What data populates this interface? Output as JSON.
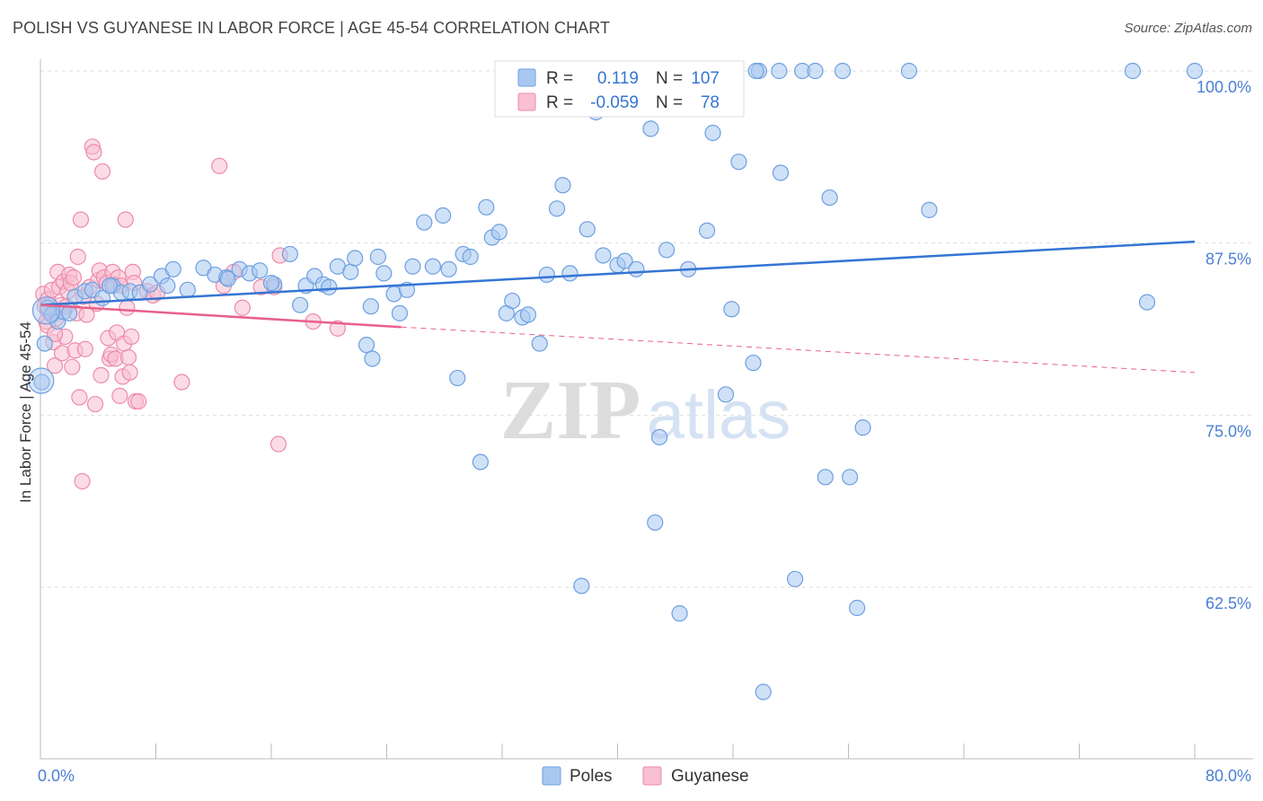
{
  "chart_data": {
    "type": "scatter",
    "title": "POLISH VS GUYANESE IN LABOR FORCE | AGE 45-54 CORRELATION CHART",
    "source": "Source: ZipAtlas.com",
    "ylabel": "In Labor Force | Age 45-54",
    "xlabel": "",
    "xlim": [
      0,
      80
    ],
    "ylim": [
      50,
      101
    ],
    "x_tick_labels": [
      "0.0%",
      "80.0%"
    ],
    "y_ticks": [
      62.5,
      75.0,
      87.5,
      100.0
    ],
    "y_tick_labels": [
      "62.5%",
      "75.0%",
      "87.5%",
      "100.0%"
    ],
    "grid": true,
    "watermark": {
      "zip": "ZIP",
      "atlas": "atlas"
    },
    "stats": {
      "r_label": "R =",
      "n_label": "N =",
      "series": [
        {
          "name": "Poles",
          "r": "0.119",
          "n": "107"
        },
        {
          "name": "Guyanese",
          "r": "-0.059",
          "n": "78"
        }
      ]
    },
    "legend_position": "top-center",
    "series": [
      {
        "name": "Poles",
        "color": "#6d9fe0",
        "fill": "#a8c8f0",
        "trend": {
          "x": [
            0,
            80
          ],
          "y": [
            83.0,
            87.6
          ],
          "style": "solid",
          "color": "#3575d3"
        },
        "points": [
          [
            0.5,
            82.8
          ],
          [
            0.8,
            82.3
          ],
          [
            1.2,
            81.8
          ],
          [
            1.6,
            82.5
          ],
          [
            2.0,
            82.4
          ],
          [
            2.4,
            83.6
          ],
          [
            3.1,
            84.0
          ],
          [
            3.6,
            84.1
          ],
          [
            4.3,
            83.5
          ],
          [
            5.0,
            84.4
          ],
          [
            5.6,
            83.9
          ],
          [
            6.2,
            84.0
          ],
          [
            6.9,
            83.9
          ],
          [
            7.6,
            84.5
          ],
          [
            8.4,
            85.1
          ],
          [
            9.2,
            85.6
          ],
          [
            10.2,
            84.1
          ],
          [
            11.3,
            85.7
          ],
          [
            12.1,
            85.2
          ],
          [
            12.9,
            85.0
          ],
          [
            13.8,
            85.6
          ],
          [
            14.5,
            85.3
          ],
          [
            15.2,
            85.5
          ],
          [
            16.2,
            84.5
          ],
          [
            17.3,
            86.7
          ],
          [
            16.0,
            84.6
          ],
          [
            18.0,
            83.0
          ],
          [
            18.4,
            84.4
          ],
          [
            19.0,
            85.1
          ],
          [
            19.6,
            84.5
          ],
          [
            20.0,
            84.3
          ],
          [
            20.6,
            85.8
          ],
          [
            21.5,
            85.4
          ],
          [
            21.8,
            86.4
          ],
          [
            22.6,
            80.1
          ],
          [
            23.0,
            79.1
          ],
          [
            23.4,
            86.5
          ],
          [
            23.8,
            85.3
          ],
          [
            24.5,
            83.8
          ],
          [
            24.9,
            82.4
          ],
          [
            25.4,
            84.1
          ],
          [
            25.8,
            85.8
          ],
          [
            26.6,
            89.0
          ],
          [
            27.2,
            85.8
          ],
          [
            27.9,
            89.5
          ],
          [
            28.3,
            85.6
          ],
          [
            28.9,
            77.7
          ],
          [
            29.3,
            86.7
          ],
          [
            29.8,
            86.5
          ],
          [
            30.5,
            71.6
          ],
          [
            30.9,
            90.1
          ],
          [
            31.3,
            87.9
          ],
          [
            31.8,
            88.3
          ],
          [
            32.3,
            82.4
          ],
          [
            32.7,
            83.3
          ],
          [
            33.4,
            82.1
          ],
          [
            33.8,
            82.3
          ],
          [
            34.6,
            80.2
          ],
          [
            35.1,
            85.2
          ],
          [
            35.8,
            90.0
          ],
          [
            36.2,
            91.7
          ],
          [
            36.7,
            85.3
          ],
          [
            37.5,
            62.6
          ],
          [
            37.9,
            88.5
          ],
          [
            38.5,
            97.0
          ],
          [
            39.0,
            86.6
          ],
          [
            40.0,
            85.9
          ],
          [
            40.5,
            86.2
          ],
          [
            41.3,
            85.6
          ],
          [
            42.3,
            95.8
          ],
          [
            42.6,
            67.2
          ],
          [
            42.9,
            73.4
          ],
          [
            43.4,
            87.0
          ],
          [
            44.3,
            60.6
          ],
          [
            44.9,
            85.6
          ],
          [
            45.1,
            98.9
          ],
          [
            46.2,
            88.4
          ],
          [
            46.6,
            95.5
          ],
          [
            47.5,
            76.5
          ],
          [
            47.9,
            82.7
          ],
          [
            48.4,
            93.4
          ],
          [
            49.4,
            78.8
          ],
          [
            49.8,
            100.0
          ],
          [
            49.6,
            100.0
          ],
          [
            50.1,
            54.9
          ],
          [
            51.2,
            100.0
          ],
          [
            51.3,
            92.6
          ],
          [
            52.3,
            63.1
          ],
          [
            52.8,
            100.0
          ],
          [
            53.7,
            100.0
          ],
          [
            54.4,
            70.5
          ],
          [
            54.7,
            90.8
          ],
          [
            55.6,
            100.0
          ],
          [
            56.1,
            70.5
          ],
          [
            56.6,
            61.0
          ],
          [
            57.0,
            74.1
          ],
          [
            60.2,
            100.0
          ],
          [
            61.6,
            89.9
          ],
          [
            75.7,
            100.0
          ],
          [
            76.7,
            83.2
          ],
          [
            80.0,
            100.0
          ],
          [
            0.3,
            80.2
          ],
          [
            0.1,
            77.4
          ],
          [
            4.8,
            84.4
          ],
          [
            8.8,
            84.4
          ],
          [
            13.0,
            84.9
          ],
          [
            22.9,
            82.9
          ]
        ]
      },
      {
        "name": "Guyanese",
        "color": "#ee8aa8",
        "fill": "#f8c0d2",
        "trend": {
          "x": [
            0,
            25,
            80
          ],
          "y": [
            83.0,
            81.4,
            78.1
          ],
          "style": "solid-then-dashed",
          "color": "#e8608a"
        },
        "points": [
          [
            0.2,
            83.8
          ],
          [
            0.3,
            82.9
          ],
          [
            0.4,
            81.8
          ],
          [
            0.5,
            83.4
          ],
          [
            0.6,
            82.5
          ],
          [
            0.8,
            84.1
          ],
          [
            0.9,
            80.3
          ],
          [
            1.0,
            78.6
          ],
          [
            1.1,
            82.0
          ],
          [
            1.2,
            85.4
          ],
          [
            1.3,
            84.3
          ],
          [
            1.4,
            83.0
          ],
          [
            1.5,
            79.5
          ],
          [
            1.6,
            84.7
          ],
          [
            1.7,
            80.7
          ],
          [
            1.8,
            82.9
          ],
          [
            1.9,
            84.0
          ],
          [
            2.0,
            85.2
          ],
          [
            2.1,
            84.6
          ],
          [
            2.2,
            78.5
          ],
          [
            2.3,
            85.0
          ],
          [
            2.4,
            79.7
          ],
          [
            2.5,
            82.4
          ],
          [
            2.6,
            86.5
          ],
          [
            2.7,
            76.3
          ],
          [
            2.8,
            89.2
          ],
          [
            2.9,
            70.2
          ],
          [
            3.0,
            83.6
          ],
          [
            3.1,
            79.8
          ],
          [
            3.2,
            82.3
          ],
          [
            3.4,
            84.3
          ],
          [
            3.6,
            94.5
          ],
          [
            3.7,
            94.1
          ],
          [
            3.8,
            75.8
          ],
          [
            3.9,
            83.1
          ],
          [
            4.0,
            84.8
          ],
          [
            4.1,
            85.5
          ],
          [
            4.2,
            77.9
          ],
          [
            4.3,
            92.7
          ],
          [
            4.4,
            85.0
          ],
          [
            4.6,
            84.6
          ],
          [
            4.7,
            80.6
          ],
          [
            4.8,
            79.1
          ],
          [
            4.9,
            79.4
          ],
          [
            5.0,
            85.4
          ],
          [
            5.1,
            84.5
          ],
          [
            5.2,
            79.1
          ],
          [
            5.3,
            81.0
          ],
          [
            5.4,
            85.0
          ],
          [
            5.5,
            76.4
          ],
          [
            5.6,
            84.4
          ],
          [
            5.7,
            77.8
          ],
          [
            5.8,
            80.2
          ],
          [
            5.9,
            89.2
          ],
          [
            6.0,
            82.8
          ],
          [
            6.1,
            79.2
          ],
          [
            6.2,
            78.1
          ],
          [
            6.3,
            80.7
          ],
          [
            6.4,
            85.4
          ],
          [
            6.5,
            84.6
          ],
          [
            6.6,
            76.0
          ],
          [
            6.8,
            76.0
          ],
          [
            7.4,
            84.0
          ],
          [
            7.8,
            83.7
          ],
          [
            8.1,
            83.9
          ],
          [
            9.8,
            77.4
          ],
          [
            12.4,
            93.1
          ],
          [
            12.7,
            84.4
          ],
          [
            13.4,
            85.4
          ],
          [
            14.0,
            82.8
          ],
          [
            15.3,
            84.3
          ],
          [
            16.2,
            84.3
          ],
          [
            16.6,
            86.6
          ],
          [
            16.5,
            72.9
          ],
          [
            18.9,
            81.8
          ],
          [
            20.6,
            81.3
          ],
          [
            0.5,
            81.5
          ],
          [
            1.0,
            80.9
          ]
        ]
      }
    ],
    "legend": [
      "Poles",
      "Guyanese"
    ]
  }
}
